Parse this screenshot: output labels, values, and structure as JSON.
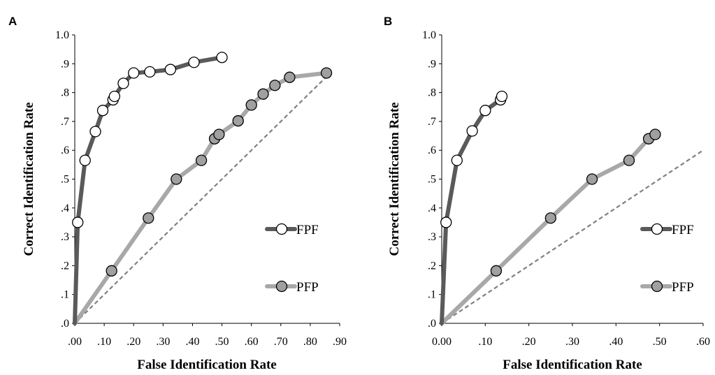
{
  "chart_data": [
    {
      "panel_label": "A",
      "type": "line",
      "xlabel": "False Identification Rate",
      "ylabel": "Correct Identification Rate",
      "xlim": [
        0,
        0.9
      ],
      "ylim": [
        0,
        1.0
      ],
      "xticks": [
        ".00",
        ".10",
        ".20",
        ".30",
        ".40",
        ".50",
        ".60",
        ".70",
        ".80",
        ".90"
      ],
      "yticks": [
        ".0",
        ".1",
        ".2",
        ".3",
        ".4",
        ".5",
        ".6",
        ".7",
        ".8",
        ".9",
        "1.0"
      ],
      "legend_position": "right",
      "reference_line": {
        "style": "dashed",
        "color": "#808080",
        "x": [
          0,
          0.855
        ],
        "y": [
          0,
          0.855
        ]
      },
      "series": [
        {
          "name": "FPF",
          "line_color": "#5a5a5a",
          "marker_fill": "#ffffff",
          "x": [
            0.0,
            0.01,
            0.035,
            0.07,
            0.095,
            0.13,
            0.135,
            0.165,
            0.2,
            0.255,
            0.325,
            0.405,
            0.5
          ],
          "y": [
            0.0,
            0.35,
            0.565,
            0.665,
            0.738,
            0.775,
            0.787,
            0.832,
            0.868,
            0.872,
            0.88,
            0.905,
            0.922
          ]
        },
        {
          "name": "PFP",
          "line_color": "#a8a8a8",
          "marker_fill": "#a0a0a0",
          "x": [
            0.0,
            0.125,
            0.25,
            0.345,
            0.43,
            0.475,
            0.49,
            0.555,
            0.6,
            0.64,
            0.68,
            0.73,
            0.855
          ],
          "y": [
            0.0,
            0.182,
            0.365,
            0.5,
            0.565,
            0.64,
            0.655,
            0.702,
            0.757,
            0.795,
            0.825,
            0.853,
            0.868
          ]
        }
      ]
    },
    {
      "panel_label": "B",
      "type": "line",
      "xlabel": "False Identification Rate",
      "ylabel": "Correct Identification Rate",
      "xlim": [
        0,
        0.6
      ],
      "ylim": [
        0,
        1.0
      ],
      "xticks": [
        "0.00",
        ".10",
        ".20",
        ".30",
        ".40",
        ".50",
        ".60"
      ],
      "yticks": [
        ".0",
        ".1",
        ".2",
        ".3",
        ".4",
        ".5",
        ".6",
        ".7",
        ".8",
        ".9",
        "1.0"
      ],
      "legend_position": "right",
      "reference_line": {
        "style": "dashed",
        "color": "#808080",
        "x": [
          0,
          0.6
        ],
        "y": [
          0,
          0.6
        ]
      },
      "series": [
        {
          "name": "FPF",
          "line_color": "#5a5a5a",
          "marker_fill": "#ffffff",
          "x": [
            0.0,
            0.01,
            0.035,
            0.07,
            0.1,
            0.135,
            0.138
          ],
          "y": [
            0.0,
            0.35,
            0.565,
            0.667,
            0.738,
            0.775,
            0.787
          ]
        },
        {
          "name": "PFP",
          "line_color": "#a8a8a8",
          "marker_fill": "#a0a0a0",
          "x": [
            0.0,
            0.125,
            0.25,
            0.345,
            0.43,
            0.475,
            0.49
          ],
          "y": [
            0.0,
            0.182,
            0.365,
            0.5,
            0.565,
            0.64,
            0.655
          ]
        }
      ]
    }
  ]
}
